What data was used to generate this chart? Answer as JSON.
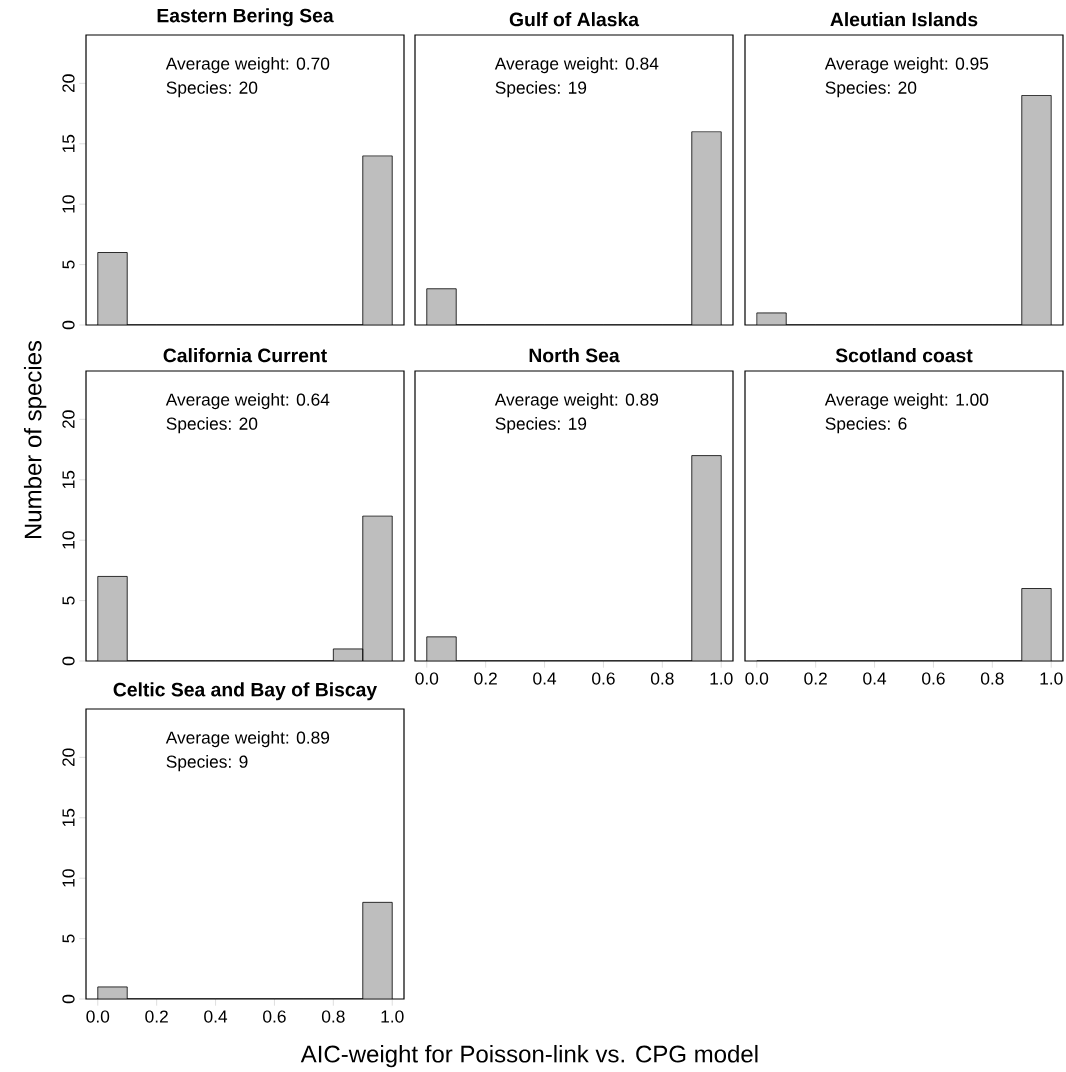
{
  "chart_data": [
    {
      "type": "histogram",
      "title": "Eastern Bering Sea",
      "bins": [
        0,
        0.1,
        0.2,
        0.3,
        0.4,
        0.5,
        0.6,
        0.7,
        0.8,
        0.9,
        1.0
      ],
      "values": [
        6,
        0,
        0,
        0,
        0,
        0,
        0,
        0,
        0,
        14
      ],
      "color": "#bebebe",
      "xlim": [
        -0.04,
        1.04
      ],
      "ylim": [
        0,
        24
      ],
      "yticks": [
        0,
        5,
        10,
        15,
        20
      ],
      "tick_labels": "y",
      "annotations": [
        "Average weight: 0.70",
        "Species: 20"
      ]
    },
    {
      "type": "histogram",
      "title": "Gulf of Alaska",
      "bins": [
        0,
        0.1,
        0.2,
        0.3,
        0.4,
        0.5,
        0.6,
        0.7,
        0.8,
        0.9,
        1.0
      ],
      "values": [
        3,
        0,
        0,
        0,
        0,
        0,
        0,
        0,
        0,
        16
      ],
      "color": "#bebebe",
      "xlim": [
        -0.04,
        1.04
      ],
      "ylim": [
        0,
        24
      ],
      "tick_labels": false,
      "annotations": [
        "Average weight: 0.84",
        "Species: 19"
      ]
    },
    {
      "type": "histogram",
      "title": "Aleutian Islands",
      "bins": [
        0,
        0.1,
        0.2,
        0.3,
        0.4,
        0.5,
        0.6,
        0.7,
        0.8,
        0.9,
        1.0
      ],
      "values": [
        1,
        0,
        0,
        0,
        0,
        0,
        0,
        0,
        0,
        19
      ],
      "color": "#bebebe",
      "xlim": [
        -0.04,
        1.04
      ],
      "ylim": [
        0,
        24
      ],
      "tick_labels": false,
      "annotations": [
        "Average weight: 0.95",
        "Species: 20"
      ]
    },
    {
      "type": "histogram",
      "title": "California Current",
      "ylabel": "Number of species",
      "bins": [
        0,
        0.1,
        0.2,
        0.3,
        0.4,
        0.5,
        0.6,
        0.7,
        0.8,
        0.9,
        1.0
      ],
      "values": [
        7,
        0,
        0,
        0,
        0,
        0,
        0,
        0,
        1,
        12
      ],
      "color": "#bebebe",
      "xlim": [
        -0.04,
        1.04
      ],
      "ylim": [
        0,
        24
      ],
      "yticks": [
        0,
        5,
        10,
        15,
        20
      ],
      "tick_labels": "y",
      "annotations": [
        "Average weight: 0.64",
        "Species: 20"
      ]
    },
    {
      "type": "histogram",
      "title": "North Sea",
      "bins": [
        0,
        0.1,
        0.2,
        0.3,
        0.4,
        0.5,
        0.6,
        0.7,
        0.8,
        0.9,
        1.0
      ],
      "values": [
        2,
        0,
        0,
        0,
        0,
        0,
        0,
        0,
        0,
        17
      ],
      "color": "#bebebe",
      "xlim": [
        -0.04,
        1.04
      ],
      "ylim": [
        0,
        24
      ],
      "xticks": [
        {
          "value": 0,
          "label": "0.0"
        },
        {
          "value": 0.2,
          "label": "0.2"
        },
        {
          "value": 0.4,
          "label": "0.4"
        },
        {
          "value": 0.6,
          "label": "0.6"
        },
        {
          "value": 0.8,
          "label": "0.8"
        },
        {
          "value": 1,
          "label": "1.0"
        }
      ],
      "tick_labels": "x",
      "annotations": [
        "Average weight: 0.89",
        "Species: 19"
      ]
    },
    {
      "type": "histogram",
      "title": "Scotland coast",
      "bins": [
        0,
        0.1,
        0.2,
        0.3,
        0.4,
        0.5,
        0.6,
        0.7,
        0.8,
        0.9,
        1.0
      ],
      "values": [
        0,
        0,
        0,
        0,
        0,
        0,
        0,
        0,
        0,
        6
      ],
      "color": "#bebebe",
      "xlim": [
        -0.04,
        1.04
      ],
      "ylim": [
        0,
        24
      ],
      "xticks": [
        {
          "value": 0,
          "label": "0.0"
        },
        {
          "value": 0.2,
          "label": "0.2"
        },
        {
          "value": 0.4,
          "label": "0.4"
        },
        {
          "value": 0.6,
          "label": "0.6"
        },
        {
          "value": 0.8,
          "label": "0.8"
        },
        {
          "value": 1,
          "label": "1.0"
        }
      ],
      "tick_labels": "x",
      "annotations": [
        "Average weight: 1.00",
        "Species: 6"
      ]
    },
    {
      "type": "histogram",
      "title": "Celtic Sea and Bay of Biscay",
      "xlabel": "AIC-weight for Poisson-link vs. CPG model",
      "bins": [
        0,
        0.1,
        0.2,
        0.3,
        0.4,
        0.5,
        0.6,
        0.7,
        0.8,
        0.9,
        1.0
      ],
      "values": [
        1,
        0,
        0,
        0,
        0,
        0,
        0,
        0,
        0,
        8
      ],
      "color": "#bebebe",
      "xlim": [
        -0.04,
        1.04
      ],
      "ylim": [
        0,
        24
      ],
      "xticks": [
        {
          "value": 0,
          "label": "0.0"
        },
        {
          "value": 0.2,
          "label": "0.2"
        },
        {
          "value": 0.4,
          "label": "0.4"
        },
        {
          "value": 0.6,
          "label": "0.6"
        },
        {
          "value": 0.8,
          "label": "0.8"
        },
        {
          "value": 1,
          "label": "1.0"
        }
      ],
      "yticks": [
        0,
        5,
        10,
        15,
        20
      ],
      "annotations": [
        "Average weight: 0.89",
        "Species: 9"
      ]
    }
  ]
}
